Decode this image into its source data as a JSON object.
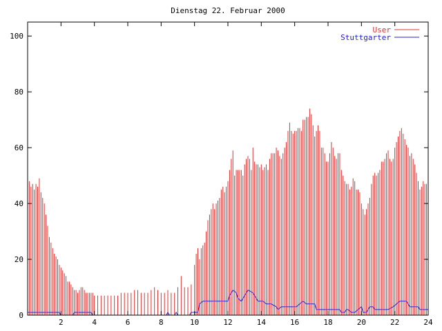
{
  "chart_data": {
    "type": "bar",
    "title": "Dienstag 22. Februar 2000",
    "xlim": [
      0,
      24
    ],
    "ylim": [
      0,
      105
    ],
    "xticks": [
      2,
      4,
      6,
      8,
      10,
      12,
      14,
      16,
      18,
      20,
      22,
      24
    ],
    "yticks": [
      0,
      20,
      40,
      60,
      80,
      100
    ],
    "grid": false,
    "legend_position": "top-right",
    "series": [
      {
        "name": "User",
        "kind": "bar",
        "color": "#e03030",
        "points": [
          [
            0.0,
            45
          ],
          [
            0.1,
            48
          ],
          [
            0.2,
            46
          ],
          [
            0.3,
            47
          ],
          [
            0.4,
            45
          ],
          [
            0.5,
            47
          ],
          [
            0.6,
            46
          ],
          [
            0.7,
            49
          ],
          [
            0.8,
            44
          ],
          [
            0.9,
            42
          ],
          [
            1.0,
            40
          ],
          [
            1.1,
            36
          ],
          [
            1.2,
            32
          ],
          [
            1.3,
            28
          ],
          [
            1.4,
            26
          ],
          [
            1.5,
            24
          ],
          [
            1.6,
            22
          ],
          [
            1.7,
            21
          ],
          [
            1.8,
            20
          ],
          [
            1.9,
            18
          ],
          [
            2.0,
            17
          ],
          [
            2.1,
            16
          ],
          [
            2.2,
            15
          ],
          [
            2.3,
            14
          ],
          [
            2.4,
            12
          ],
          [
            2.5,
            12
          ],
          [
            2.6,
            11
          ],
          [
            2.7,
            10
          ],
          [
            2.8,
            9
          ],
          [
            2.9,
            9
          ],
          [
            3.0,
            8
          ],
          [
            3.1,
            9
          ],
          [
            3.2,
            10
          ],
          [
            3.3,
            10
          ],
          [
            3.4,
            9
          ],
          [
            3.5,
            8
          ],
          [
            3.6,
            8
          ],
          [
            3.7,
            8
          ],
          [
            3.8,
            8
          ],
          [
            3.9,
            8
          ],
          [
            4.0,
            7
          ],
          [
            4.2,
            7
          ],
          [
            4.4,
            7
          ],
          [
            4.6,
            7
          ],
          [
            4.8,
            7
          ],
          [
            5.0,
            7
          ],
          [
            5.2,
            7
          ],
          [
            5.4,
            7
          ],
          [
            5.6,
            8
          ],
          [
            5.8,
            8
          ],
          [
            6.0,
            8
          ],
          [
            6.2,
            8
          ],
          [
            6.4,
            9
          ],
          [
            6.6,
            9
          ],
          [
            6.8,
            8
          ],
          [
            7.0,
            8
          ],
          [
            7.2,
            8
          ],
          [
            7.4,
            9
          ],
          [
            7.6,
            10
          ],
          [
            7.8,
            9
          ],
          [
            8.0,
            8
          ],
          [
            8.2,
            8
          ],
          [
            8.4,
            9
          ],
          [
            8.6,
            8
          ],
          [
            8.8,
            8
          ],
          [
            9.0,
            10
          ],
          [
            9.2,
            14
          ],
          [
            9.4,
            10
          ],
          [
            9.6,
            10
          ],
          [
            9.8,
            11
          ],
          [
            10.0,
            18
          ],
          [
            10.1,
            22
          ],
          [
            10.2,
            24
          ],
          [
            10.3,
            20
          ],
          [
            10.4,
            24
          ],
          [
            10.5,
            25
          ],
          [
            10.6,
            26
          ],
          [
            10.7,
            30
          ],
          [
            10.8,
            34
          ],
          [
            10.9,
            36
          ],
          [
            11.0,
            38
          ],
          [
            11.1,
            40
          ],
          [
            11.2,
            38
          ],
          [
            11.3,
            40
          ],
          [
            11.4,
            41
          ],
          [
            11.5,
            42
          ],
          [
            11.6,
            45
          ],
          [
            11.7,
            46
          ],
          [
            11.8,
            44
          ],
          [
            11.9,
            46
          ],
          [
            12.0,
            48
          ],
          [
            12.1,
            52
          ],
          [
            12.2,
            56
          ],
          [
            12.3,
            59
          ],
          [
            12.4,
            50
          ],
          [
            12.5,
            52
          ],
          [
            12.6,
            52
          ],
          [
            12.7,
            52
          ],
          [
            12.8,
            52
          ],
          [
            12.9,
            50
          ],
          [
            13.0,
            54
          ],
          [
            13.1,
            56
          ],
          [
            13.2,
            57
          ],
          [
            13.3,
            56
          ],
          [
            13.4,
            52
          ],
          [
            13.5,
            60
          ],
          [
            13.6,
            55
          ],
          [
            13.7,
            54
          ],
          [
            13.8,
            54
          ],
          [
            13.9,
            53
          ],
          [
            14.0,
            54
          ],
          [
            14.1,
            52
          ],
          [
            14.2,
            53
          ],
          [
            14.3,
            54
          ],
          [
            14.4,
            52
          ],
          [
            14.5,
            56
          ],
          [
            14.6,
            58
          ],
          [
            14.7,
            58
          ],
          [
            14.8,
            58
          ],
          [
            14.9,
            60
          ],
          [
            15.0,
            59
          ],
          [
            15.1,
            57
          ],
          [
            15.2,
            56
          ],
          [
            15.3,
            58
          ],
          [
            15.4,
            60
          ],
          [
            15.5,
            62
          ],
          [
            15.6,
            66
          ],
          [
            15.7,
            69
          ],
          [
            15.8,
            66
          ],
          [
            15.9,
            65
          ],
          [
            16.0,
            66
          ],
          [
            16.1,
            66
          ],
          [
            16.2,
            67
          ],
          [
            16.3,
            67
          ],
          [
            16.4,
            66
          ],
          [
            16.5,
            70
          ],
          [
            16.6,
            70
          ],
          [
            16.7,
            71
          ],
          [
            16.8,
            71
          ],
          [
            16.9,
            74
          ],
          [
            17.0,
            72
          ],
          [
            17.1,
            68
          ],
          [
            17.2,
            64
          ],
          [
            17.3,
            66
          ],
          [
            17.4,
            68
          ],
          [
            17.5,
            66
          ],
          [
            17.6,
            60
          ],
          [
            17.7,
            60
          ],
          [
            17.8,
            58
          ],
          [
            17.9,
            55
          ],
          [
            18.0,
            55
          ],
          [
            18.1,
            58
          ],
          [
            18.2,
            62
          ],
          [
            18.3,
            60
          ],
          [
            18.4,
            57
          ],
          [
            18.5,
            56
          ],
          [
            18.6,
            58
          ],
          [
            18.7,
            58
          ],
          [
            18.8,
            52
          ],
          [
            18.9,
            50
          ],
          [
            19.0,
            48
          ],
          [
            19.1,
            47
          ],
          [
            19.2,
            47
          ],
          [
            19.3,
            45
          ],
          [
            19.4,
            46
          ],
          [
            19.5,
            49
          ],
          [
            19.6,
            48
          ],
          [
            19.7,
            45
          ],
          [
            19.8,
            45
          ],
          [
            19.9,
            44
          ],
          [
            20.0,
            40
          ],
          [
            20.1,
            38
          ],
          [
            20.2,
            36
          ],
          [
            20.3,
            38
          ],
          [
            20.4,
            40
          ],
          [
            20.5,
            42
          ],
          [
            20.6,
            47
          ],
          [
            20.7,
            50
          ],
          [
            20.8,
            51
          ],
          [
            20.9,
            50
          ],
          [
            21.0,
            51
          ],
          [
            21.1,
            52
          ],
          [
            21.2,
            55
          ],
          [
            21.3,
            55
          ],
          [
            21.4,
            56
          ],
          [
            21.5,
            58
          ],
          [
            21.6,
            59
          ],
          [
            21.7,
            56
          ],
          [
            21.8,
            55
          ],
          [
            21.9,
            56
          ],
          [
            22.0,
            60
          ],
          [
            22.1,
            62
          ],
          [
            22.2,
            64
          ],
          [
            22.3,
            66
          ],
          [
            22.4,
            67
          ],
          [
            22.5,
            65
          ],
          [
            22.6,
            63
          ],
          [
            22.7,
            61
          ],
          [
            22.8,
            60
          ],
          [
            22.9,
            57
          ],
          [
            23.0,
            58
          ],
          [
            23.1,
            56
          ],
          [
            23.2,
            54
          ],
          [
            23.3,
            51
          ],
          [
            23.4,
            48
          ],
          [
            23.5,
            45
          ],
          [
            23.6,
            46
          ],
          [
            23.7,
            48
          ],
          [
            23.8,
            47
          ],
          [
            23.9,
            47
          ],
          [
            24.0,
            44
          ]
        ]
      },
      {
        "name": "Stuttgarter",
        "kind": "line",
        "color": "#2020d0",
        "points": [
          [
            0.0,
            1
          ],
          [
            1.9,
            1
          ],
          [
            2.0,
            0
          ],
          [
            2.7,
            0
          ],
          [
            2.8,
            1
          ],
          [
            3.8,
            1
          ],
          [
            3.9,
            0
          ],
          [
            8.3,
            0
          ],
          [
            8.4,
            1
          ],
          [
            8.5,
            0
          ],
          [
            8.8,
            0
          ],
          [
            8.9,
            1
          ],
          [
            9.0,
            0
          ],
          [
            9.7,
            0
          ],
          [
            9.8,
            1
          ],
          [
            10.2,
            1
          ],
          [
            10.3,
            4
          ],
          [
            10.5,
            5
          ],
          [
            12.0,
            5
          ],
          [
            12.1,
            7
          ],
          [
            12.3,
            9
          ],
          [
            12.5,
            8
          ],
          [
            12.6,
            6
          ],
          [
            12.8,
            5
          ],
          [
            13.0,
            7
          ],
          [
            13.2,
            9
          ],
          [
            13.5,
            8
          ],
          [
            13.8,
            5
          ],
          [
            14.1,
            5
          ],
          [
            14.3,
            4
          ],
          [
            14.6,
            4
          ],
          [
            14.9,
            3
          ],
          [
            15.0,
            2
          ],
          [
            15.2,
            3
          ],
          [
            16.1,
            3
          ],
          [
            16.3,
            4
          ],
          [
            16.5,
            5
          ],
          [
            16.7,
            4
          ],
          [
            17.2,
            4
          ],
          [
            17.3,
            2
          ],
          [
            18.7,
            2
          ],
          [
            18.8,
            1
          ],
          [
            19.0,
            1
          ],
          [
            19.1,
            2
          ],
          [
            19.2,
            2
          ],
          [
            19.4,
            1
          ],
          [
            19.6,
            1
          ],
          [
            19.8,
            2
          ],
          [
            20.0,
            3
          ],
          [
            20.1,
            1
          ],
          [
            20.3,
            1
          ],
          [
            20.5,
            3
          ],
          [
            20.7,
            3
          ],
          [
            20.8,
            2
          ],
          [
            21.6,
            2
          ],
          [
            21.9,
            3
          ],
          [
            22.1,
            4
          ],
          [
            22.3,
            5
          ],
          [
            22.7,
            5
          ],
          [
            22.9,
            3
          ],
          [
            23.4,
            3
          ],
          [
            23.5,
            2
          ],
          [
            24.0,
            2
          ]
        ]
      }
    ]
  }
}
